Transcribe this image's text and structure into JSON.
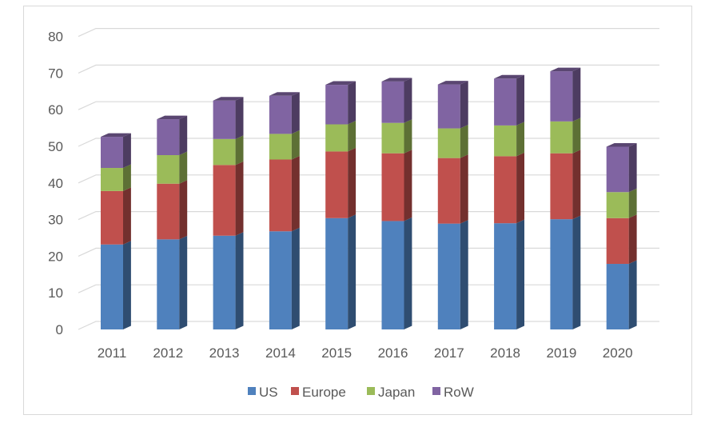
{
  "chart_data": {
    "type": "bar",
    "stacked": true,
    "three_d": true,
    "title": "",
    "xlabel": "",
    "ylabel": "",
    "categories": [
      "2011",
      "2012",
      "2013",
      "2014",
      "2015",
      "2016",
      "2017",
      "2018",
      "2019",
      "2020"
    ],
    "ylim": [
      0,
      80
    ],
    "yticks": [
      "0",
      "10",
      "20",
      "30",
      "40",
      "50",
      "60",
      "70",
      "80"
    ],
    "grid": true,
    "legend_position": "bottom",
    "series": [
      {
        "name": "US",
        "color": "#4F81BD",
        "values": [
          23.2,
          24.6,
          25.6,
          26.8,
          30.4,
          29.6,
          28.9,
          29.0,
          30.1,
          17.9
        ]
      },
      {
        "name": "Europe",
        "color": "#C0504D",
        "values": [
          14.6,
          15.2,
          19.3,
          19.6,
          18.2,
          18.5,
          17.9,
          18.3,
          18.0,
          12.5
        ]
      },
      {
        "name": "Japan",
        "color": "#9BBB59",
        "values": [
          6.3,
          7.8,
          7.1,
          7.0,
          7.4,
          8.3,
          8.1,
          8.4,
          8.7,
          7.1
        ]
      },
      {
        "name": "RoW",
        "color": "#8064A2",
        "values": [
          8.5,
          9.8,
          10.5,
          10.4,
          10.8,
          11.3,
          12.0,
          12.8,
          13.7,
          12.4
        ]
      }
    ]
  }
}
